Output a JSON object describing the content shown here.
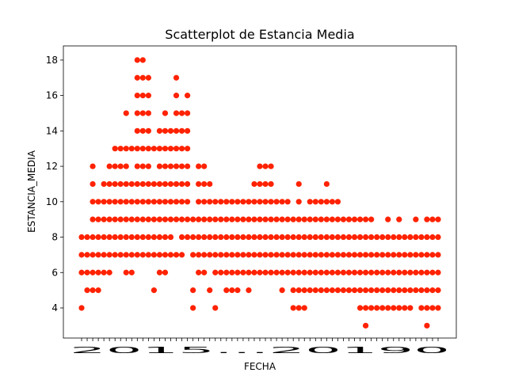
{
  "chart_data": {
    "type": "scatter",
    "title": "Scatterplot de Estancia Media",
    "xlabel": "FECHA",
    "ylabel": "ESTANCIA_MEDIA",
    "ylim": [
      2.3,
      18.8
    ],
    "yticks": [
      4,
      6,
      8,
      10,
      12,
      14,
      16,
      18
    ],
    "grid": false,
    "legend": "none",
    "marker_color": "#ff2200",
    "x_categories": 65,
    "x_tick_labels_overlapping": "2015...20190",
    "columns": [
      {
        "x": 0,
        "y": [
          4,
          6,
          7,
          8
        ]
      },
      {
        "x": 1,
        "y": [
          5,
          6,
          7,
          8
        ]
      },
      {
        "x": 2,
        "y": [
          5,
          6,
          7,
          8,
          9,
          10,
          11,
          12
        ]
      },
      {
        "x": 3,
        "y": [
          5,
          6,
          7,
          8,
          9,
          10
        ]
      },
      {
        "x": 4,
        "y": [
          6,
          7,
          8,
          9,
          10,
          11
        ]
      },
      {
        "x": 5,
        "y": [
          6,
          7,
          8,
          9,
          10,
          11,
          12
        ]
      },
      {
        "x": 6,
        "y": [
          7,
          8,
          9,
          10,
          11,
          12,
          13
        ]
      },
      {
        "x": 7,
        "y": [
          7,
          8,
          9,
          10,
          11,
          12,
          13
        ]
      },
      {
        "x": 8,
        "y": [
          6,
          7,
          8,
          9,
          10,
          11,
          12,
          13,
          15
        ]
      },
      {
        "x": 9,
        "y": [
          6,
          7,
          8,
          9,
          10,
          11,
          13
        ]
      },
      {
        "x": 10,
        "y": [
          7,
          8,
          9,
          10,
          11,
          12,
          13,
          14,
          15,
          16,
          17,
          18
        ]
      },
      {
        "x": 11,
        "y": [
          7,
          8,
          9,
          10,
          11,
          12,
          13,
          14,
          15,
          16,
          17,
          18
        ]
      },
      {
        "x": 12,
        "y": [
          7,
          8,
          9,
          10,
          11,
          12,
          13,
          14,
          15,
          16,
          17
        ]
      },
      {
        "x": 13,
        "y": [
          5,
          7,
          8,
          9,
          10,
          11,
          13
        ]
      },
      {
        "x": 14,
        "y": [
          6,
          7,
          8,
          9,
          10,
          11,
          12,
          13,
          14
        ]
      },
      {
        "x": 15,
        "y": [
          6,
          7,
          8,
          9,
          10,
          11,
          12,
          13,
          14,
          15
        ]
      },
      {
        "x": 16,
        "y": [
          7,
          8,
          9,
          10,
          11,
          12,
          13,
          14
        ]
      },
      {
        "x": 17,
        "y": [
          7,
          9,
          10,
          11,
          12,
          13,
          14,
          15,
          16,
          17
        ]
      },
      {
        "x": 18,
        "y": [
          7,
          8,
          9,
          10,
          11,
          12,
          13,
          14,
          15
        ]
      },
      {
        "x": 19,
        "y": [
          8,
          9,
          10,
          11,
          12,
          13,
          14,
          15,
          16
        ]
      },
      {
        "x": 20,
        "y": [
          4,
          5,
          7,
          8,
          9
        ]
      },
      {
        "x": 21,
        "y": [
          6,
          7,
          8,
          9,
          10,
          11,
          12
        ]
      },
      {
        "x": 22,
        "y": [
          6,
          7,
          8,
          9,
          10,
          11,
          12
        ]
      },
      {
        "x": 23,
        "y": [
          5,
          7,
          8,
          9,
          10,
          11
        ]
      },
      {
        "x": 24,
        "y": [
          4,
          6,
          7,
          8,
          9,
          10
        ]
      },
      {
        "x": 25,
        "y": [
          6,
          7,
          8,
          9,
          10
        ]
      },
      {
        "x": 26,
        "y": [
          5,
          6,
          7,
          8,
          9,
          10
        ]
      },
      {
        "x": 27,
        "y": [
          5,
          6,
          7,
          8,
          9,
          10
        ]
      },
      {
        "x": 28,
        "y": [
          5,
          6,
          7,
          8,
          9,
          10
        ]
      },
      {
        "x": 29,
        "y": [
          6,
          7,
          8,
          9,
          10
        ]
      },
      {
        "x": 30,
        "y": [
          5,
          6,
          7,
          8,
          9,
          10
        ]
      },
      {
        "x": 31,
        "y": [
          6,
          7,
          8,
          9,
          10,
          11
        ]
      },
      {
        "x": 32,
        "y": [
          6,
          7,
          8,
          9,
          10,
          11,
          12
        ]
      },
      {
        "x": 33,
        "y": [
          6,
          7,
          8,
          9,
          10,
          11,
          12
        ]
      },
      {
        "x": 34,
        "y": [
          6,
          7,
          8,
          9,
          10,
          11,
          12
        ]
      },
      {
        "x": 35,
        "y": [
          6,
          7,
          8,
          9,
          10
        ]
      },
      {
        "x": 36,
        "y": [
          5,
          6,
          7,
          8,
          9,
          10
        ]
      },
      {
        "x": 37,
        "y": [
          6,
          7,
          8,
          9,
          10
        ]
      },
      {
        "x": 38,
        "y": [
          4,
          5,
          6,
          7,
          8,
          9
        ]
      },
      {
        "x": 39,
        "y": [
          4,
          5,
          6,
          7,
          8,
          9,
          10,
          11
        ]
      },
      {
        "x": 40,
        "y": [
          4,
          5,
          6,
          7,
          8,
          9
        ]
      },
      {
        "x": 41,
        "y": [
          5,
          6,
          7,
          8,
          9,
          10
        ]
      },
      {
        "x": 42,
        "y": [
          5,
          6,
          7,
          8,
          9,
          10
        ]
      },
      {
        "x": 43,
        "y": [
          5,
          6,
          7,
          8,
          9,
          10
        ]
      },
      {
        "x": 44,
        "y": [
          5,
          6,
          7,
          8,
          9,
          10,
          11
        ]
      },
      {
        "x": 45,
        "y": [
          5,
          6,
          7,
          8,
          9,
          10
        ]
      },
      {
        "x": 46,
        "y": [
          5,
          6,
          7,
          8,
          9,
          10
        ]
      },
      {
        "x": 47,
        "y": [
          5,
          6,
          7,
          8,
          9
        ]
      },
      {
        "x": 48,
        "y": [
          5,
          6,
          7,
          8,
          9
        ]
      },
      {
        "x": 49,
        "y": [
          5,
          6,
          7,
          8,
          9
        ]
      },
      {
        "x": 50,
        "y": [
          4,
          5,
          6,
          7,
          8,
          9
        ]
      },
      {
        "x": 51,
        "y": [
          3,
          4,
          5,
          6,
          7,
          8,
          9
        ]
      },
      {
        "x": 52,
        "y": [
          4,
          5,
          6,
          7,
          8,
          9
        ]
      },
      {
        "x": 53,
        "y": [
          4,
          5,
          6,
          7,
          8
        ]
      },
      {
        "x": 54,
        "y": [
          4,
          5,
          6,
          7,
          8
        ]
      },
      {
        "x": 55,
        "y": [
          4,
          5,
          6,
          7,
          8,
          9
        ]
      },
      {
        "x": 56,
        "y": [
          4,
          5,
          6,
          7,
          8
        ]
      },
      {
        "x": 57,
        "y": [
          4,
          5,
          6,
          7,
          8,
          9
        ]
      },
      {
        "x": 58,
        "y": [
          4,
          5,
          6,
          7,
          8
        ]
      },
      {
        "x": 59,
        "y": [
          4,
          5,
          6,
          7,
          8
        ]
      },
      {
        "x": 60,
        "y": [
          5,
          6,
          7,
          8,
          9
        ]
      },
      {
        "x": 61,
        "y": [
          4,
          5,
          6,
          7,
          8
        ]
      },
      {
        "x": 62,
        "y": [
          3,
          4,
          5,
          6,
          7,
          8,
          9
        ]
      },
      {
        "x": 63,
        "y": [
          4,
          5,
          6,
          7,
          8,
          9
        ]
      },
      {
        "x": 64,
        "y": [
          4,
          5,
          6,
          7,
          8,
          9
        ]
      }
    ]
  }
}
